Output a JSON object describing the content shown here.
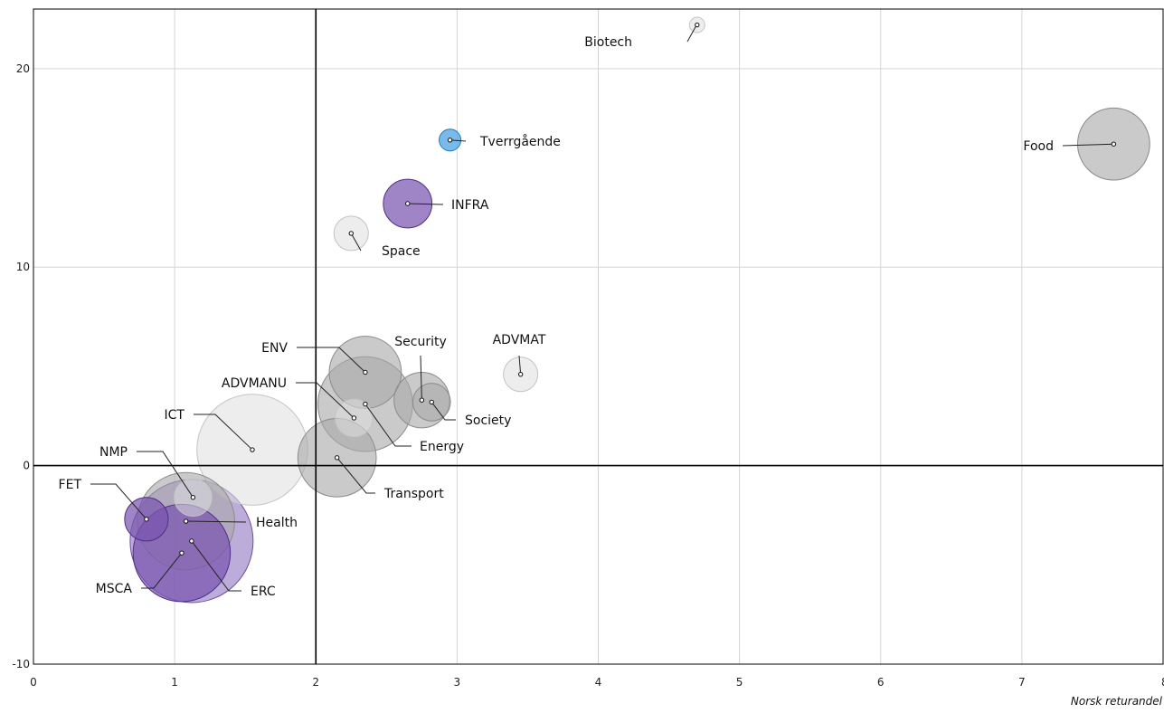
{
  "chart_data": {
    "type": "scatter",
    "xlabel": "Norsk returandel",
    "ylabel": "",
    "xlim": [
      0,
      8
    ],
    "ylim": [
      -10,
      23
    ],
    "x_ticks": [
      "0",
      "1",
      "2",
      "3",
      "4",
      "5",
      "6",
      "7",
      "8"
    ],
    "y_ticks": [
      "-10",
      "0",
      "10",
      "20"
    ],
    "reference_lines": {
      "x": 2,
      "y": 0
    },
    "grid": true,
    "colors": {
      "gray": "#aaaaaa",
      "light_gray": "#dedede",
      "purple": "#7a55b0",
      "light_purple": "#9c84c8",
      "blue": "#6cb3e6"
    },
    "points": [
      {
        "label": "Biotech",
        "x": 4.7,
        "y": 22.2,
        "size": 5,
        "color": "light_gray"
      },
      {
        "label": "Food",
        "x": 7.65,
        "y": 16.2,
        "size": 110,
        "color": "gray"
      },
      {
        "label": "Tverrgående",
        "x": 2.95,
        "y": 16.4,
        "size": 10,
        "color": "blue"
      },
      {
        "label": "INFRA",
        "x": 2.65,
        "y": 13.2,
        "size": 50,
        "color": "purple"
      },
      {
        "label": "Space",
        "x": 2.25,
        "y": 11.7,
        "size": 25,
        "color": "light_gray"
      },
      {
        "label": "ENV",
        "x": 2.35,
        "y": 4.7,
        "size": 110,
        "color": "gray"
      },
      {
        "label": "Security",
        "x": 2.75,
        "y": 3.3,
        "size": 65,
        "color": "gray"
      },
      {
        "label": "ADVMAT",
        "x": 3.45,
        "y": 4.6,
        "size": 25,
        "color": "light_gray"
      },
      {
        "label": "ADVMANU",
        "x": 2.27,
        "y": 2.4,
        "size": 30,
        "color": "light_gray"
      },
      {
        "label": "Energy",
        "x": 2.35,
        "y": 3.1,
        "size": 190,
        "color": "gray"
      },
      {
        "label": "Society",
        "x": 2.82,
        "y": 3.2,
        "size": 30,
        "color": "gray"
      },
      {
        "label": "ICT",
        "x": 1.55,
        "y": 0.8,
        "size": 260,
        "color": "light_gray"
      },
      {
        "label": "Transport",
        "x": 2.15,
        "y": 0.4,
        "size": 130,
        "color": "gray"
      },
      {
        "label": "NMP",
        "x": 1.13,
        "y": -1.6,
        "size": 30,
        "color": "light_gray"
      },
      {
        "label": "FET",
        "x": 0.8,
        "y": -2.7,
        "size": 40,
        "color": "purple"
      },
      {
        "label": "Health",
        "x": 1.08,
        "y": -2.8,
        "size": 200,
        "color": "gray"
      },
      {
        "label": "ERC",
        "x": 1.12,
        "y": -3.8,
        "size": 320,
        "color": "light_purple"
      },
      {
        "label": "MSCA",
        "x": 1.05,
        "y": -4.4,
        "size": 200,
        "color": "purple"
      }
    ]
  }
}
